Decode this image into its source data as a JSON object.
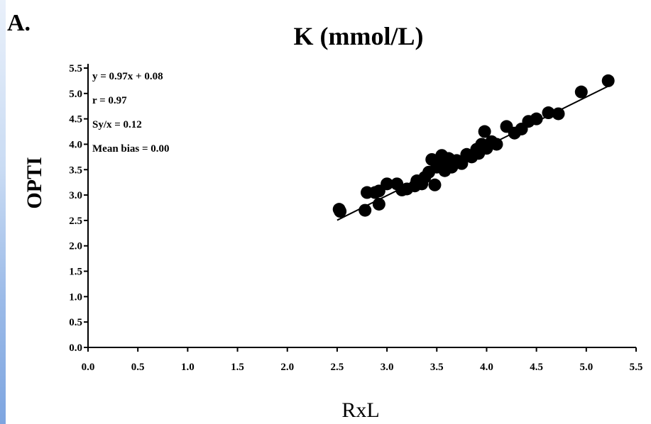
{
  "panel_label": "A.",
  "chart_data": {
    "type": "scatter",
    "title": "K (mmol/L)",
    "xlabel": "RxL",
    "ylabel": "OPTI",
    "xlim": [
      0,
      5.5
    ],
    "ylim": [
      0,
      5.5
    ],
    "xticks": [
      "0.0",
      "0.5",
      "1.0",
      "1.5",
      "2.0",
      "2.5",
      "3.0",
      "3.5",
      "4.0",
      "4.5",
      "5.0",
      "5.5"
    ],
    "yticks": [
      "0.0",
      "0.5",
      "1.0",
      "1.5",
      "2.0",
      "2.5",
      "3.0",
      "3.5",
      "4.0",
      "4.5",
      "5.0",
      "5.5"
    ],
    "grid": false,
    "annotations": [
      "y = 0.97x + 0.08",
      "r = 0.97",
      "Sy/x = 0.12",
      "Mean bias = 0.00"
    ],
    "regression": {
      "slope": 0.97,
      "intercept": 0.08,
      "x_range": [
        2.5,
        5.25
      ]
    },
    "points": [
      [
        2.52,
        2.72
      ],
      [
        2.53,
        2.68
      ],
      [
        2.78,
        2.7
      ],
      [
        2.8,
        3.05
      ],
      [
        2.88,
        3.05
      ],
      [
        2.92,
        2.82
      ],
      [
        2.92,
        3.08
      ],
      [
        3.0,
        3.22
      ],
      [
        3.1,
        3.22
      ],
      [
        3.15,
        3.1
      ],
      [
        3.2,
        3.12
      ],
      [
        3.28,
        3.18
      ],
      [
        3.3,
        3.28
      ],
      [
        3.35,
        3.22
      ],
      [
        3.38,
        3.35
      ],
      [
        3.42,
        3.45
      ],
      [
        3.45,
        3.7
      ],
      [
        3.48,
        3.2
      ],
      [
        3.5,
        3.55
      ],
      [
        3.5,
        3.65
      ],
      [
        3.55,
        3.78
      ],
      [
        3.58,
        3.48
      ],
      [
        3.6,
        3.6
      ],
      [
        3.62,
        3.72
      ],
      [
        3.65,
        3.55
      ],
      [
        3.7,
        3.68
      ],
      [
        3.75,
        3.62
      ],
      [
        3.8,
        3.8
      ],
      [
        3.85,
        3.75
      ],
      [
        3.9,
        3.9
      ],
      [
        3.92,
        3.82
      ],
      [
        3.95,
        4.0
      ],
      [
        3.98,
        4.25
      ],
      [
        4.0,
        3.92
      ],
      [
        4.05,
        4.05
      ],
      [
        4.1,
        4.0
      ],
      [
        4.2,
        4.35
      ],
      [
        4.28,
        4.22
      ],
      [
        4.35,
        4.3
      ],
      [
        4.42,
        4.45
      ],
      [
        4.5,
        4.5
      ],
      [
        4.62,
        4.62
      ],
      [
        4.72,
        4.6
      ],
      [
        4.95,
        5.03
      ],
      [
        5.22,
        5.25
      ]
    ]
  }
}
